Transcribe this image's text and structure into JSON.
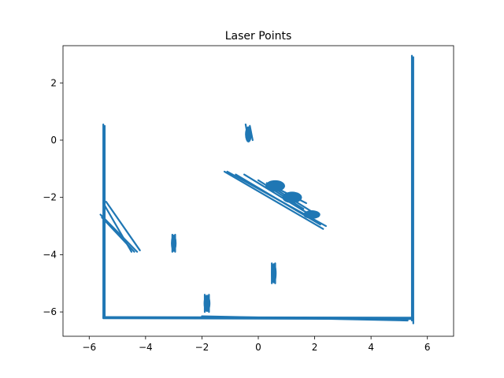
{
  "chart_data": {
    "type": "scatter",
    "title": "Laser Points",
    "xlabel": "",
    "ylabel": "",
    "xlim": [
      -6.93,
      6.93
    ],
    "ylim": [
      -6.85,
      3.3
    ],
    "xticks": [
      {
        "value": -6,
        "label": "−6"
      },
      {
        "value": -4,
        "label": "−4"
      },
      {
        "value": -2,
        "label": "−2"
      },
      {
        "value": 0,
        "label": "0"
      },
      {
        "value": 2,
        "label": "2"
      },
      {
        "value": 4,
        "label": "4"
      },
      {
        "value": 6,
        "label": "6"
      }
    ],
    "yticks": [
      {
        "value": 2,
        "label": "2"
      },
      {
        "value": 0,
        "label": "0"
      },
      {
        "value": -2,
        "label": "−2"
      },
      {
        "value": -4,
        "label": "−4"
      },
      {
        "value": -6,
        "label": "−6"
      }
    ],
    "grid": false,
    "color": "#1f77b4",
    "segments": [
      {
        "x1": -5.5,
        "y1": 0.55,
        "x2": -5.5,
        "y2": -6.2
      },
      {
        "x1": -5.45,
        "y1": 0.5,
        "x2": -5.45,
        "y2": -6.2
      },
      {
        "x1": 5.45,
        "y1": 2.95,
        "x2": 5.45,
        "y2": -6.3
      },
      {
        "x1": 5.5,
        "y1": 2.9,
        "x2": 5.5,
        "y2": -6.4
      },
      {
        "x1": -5.5,
        "y1": -6.18,
        "x2": 5.5,
        "y2": -6.2
      },
      {
        "x1": -5.5,
        "y1": -6.22,
        "x2": 5.5,
        "y2": -6.25
      },
      {
        "x1": -2.0,
        "y1": -6.15,
        "x2": 5.3,
        "y2": -6.3
      },
      {
        "x1": -5.6,
        "y1": -2.6,
        "x2": -4.3,
        "y2": -3.9
      },
      {
        "x1": -5.5,
        "y1": -2.2,
        "x2": -4.5,
        "y2": -3.9
      },
      {
        "x1": -5.4,
        "y1": -2.15,
        "x2": -4.2,
        "y2": -3.85
      },
      {
        "x1": -5.55,
        "y1": -2.7,
        "x2": -4.4,
        "y2": -3.9
      },
      {
        "x1": -1.2,
        "y1": -1.1,
        "x2": 2.3,
        "y2": -3.1
      },
      {
        "x1": -1.1,
        "y1": -1.1,
        "x2": 2.4,
        "y2": -3.0
      },
      {
        "x1": -0.8,
        "y1": -1.2,
        "x2": 2.2,
        "y2": -2.95
      },
      {
        "x1": -0.5,
        "y1": -1.2,
        "x2": 2.0,
        "y2": -2.7
      },
      {
        "x1": 0.0,
        "y1": -1.4,
        "x2": 1.6,
        "y2": -2.4
      },
      {
        "x1": 0.3,
        "y1": -1.5,
        "x2": 1.7,
        "y2": -2.2
      },
      {
        "x1": 0.6,
        "y1": -1.7,
        "x2": 1.9,
        "y2": -2.5
      },
      {
        "x1": -3.05,
        "y1": -3.3,
        "x2": -3.05,
        "y2": -3.9
      },
      {
        "x1": -2.95,
        "y1": -3.3,
        "x2": -2.95,
        "y2": -3.9
      },
      {
        "x1": -1.9,
        "y1": -5.4,
        "x2": -1.9,
        "y2": -6.0
      },
      {
        "x1": -1.75,
        "y1": -5.4,
        "x2": -1.75,
        "y2": -6.0
      },
      {
        "x1": 0.48,
        "y1": -4.3,
        "x2": 0.48,
        "y2": -5.0
      },
      {
        "x1": 0.6,
        "y1": -4.3,
        "x2": 0.6,
        "y2": -5.0
      },
      {
        "x1": -0.45,
        "y1": 0.55,
        "x2": -0.35,
        "y2": 0.0
      },
      {
        "x1": -0.3,
        "y1": 0.5,
        "x2": -0.2,
        "y2": 0.0
      }
    ],
    "blobs": [
      {
        "x": -3.0,
        "y": -3.6,
        "rx": 0.1,
        "ry": 0.3
      },
      {
        "x": -1.82,
        "y": -5.7,
        "rx": 0.12,
        "ry": 0.3
      },
      {
        "x": 0.55,
        "y": -4.65,
        "rx": 0.1,
        "ry": 0.35
      },
      {
        "x": -0.35,
        "y": 0.2,
        "rx": 0.12,
        "ry": 0.28
      },
      {
        "x": 0.6,
        "y": -1.6,
        "rx": 0.35,
        "ry": 0.2
      },
      {
        "x": 1.2,
        "y": -2.0,
        "rx": 0.35,
        "ry": 0.2
      },
      {
        "x": 1.9,
        "y": -2.6,
        "rx": 0.3,
        "ry": 0.15
      }
    ]
  }
}
